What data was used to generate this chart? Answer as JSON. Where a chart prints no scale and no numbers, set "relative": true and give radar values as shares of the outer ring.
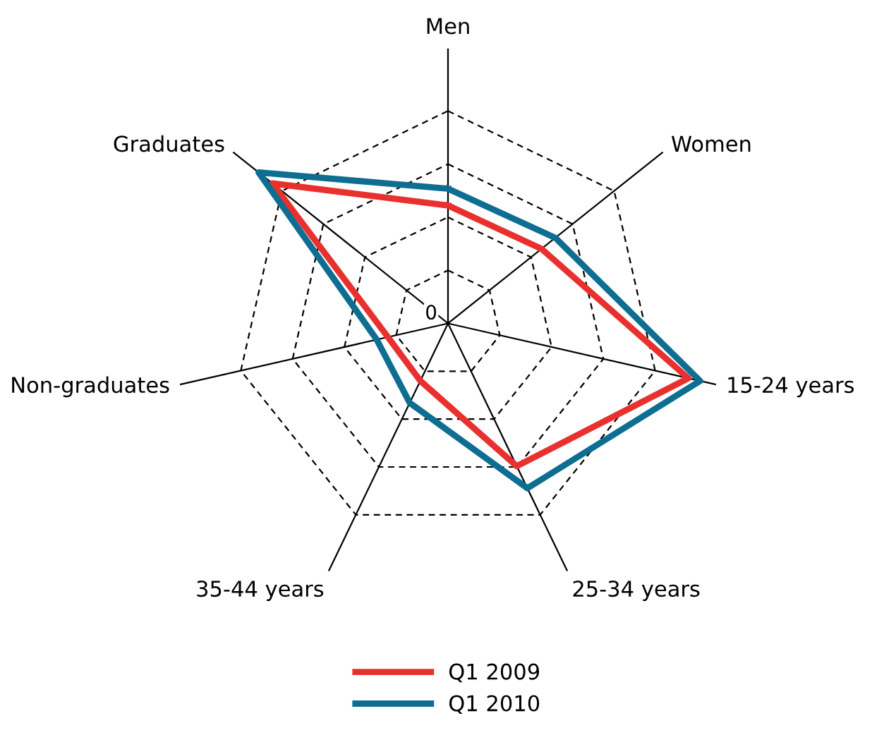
{
  "chart_data": {
    "type": "radar",
    "relative": true,
    "categories": [
      "Men",
      "Women",
      "15-24 years",
      "25-34 years",
      "35-44 years",
      "Non-graduates",
      "Graduates"
    ],
    "annotations": [
      "0"
    ],
    "grid": true,
    "legend": "bottom",
    "series": [
      {
        "name": "Q1 2009",
        "color": "#e8312f",
        "values": [
          0.555,
          0.563,
          1.16,
          0.746,
          0.3,
          0.29,
          1.057
        ]
      },
      {
        "name": "Q1 2010",
        "color": "#0d6e91",
        "values": [
          0.634,
          0.646,
          1.217,
          0.861,
          0.415,
          0.344,
          1.14
        ]
      }
    ]
  }
}
